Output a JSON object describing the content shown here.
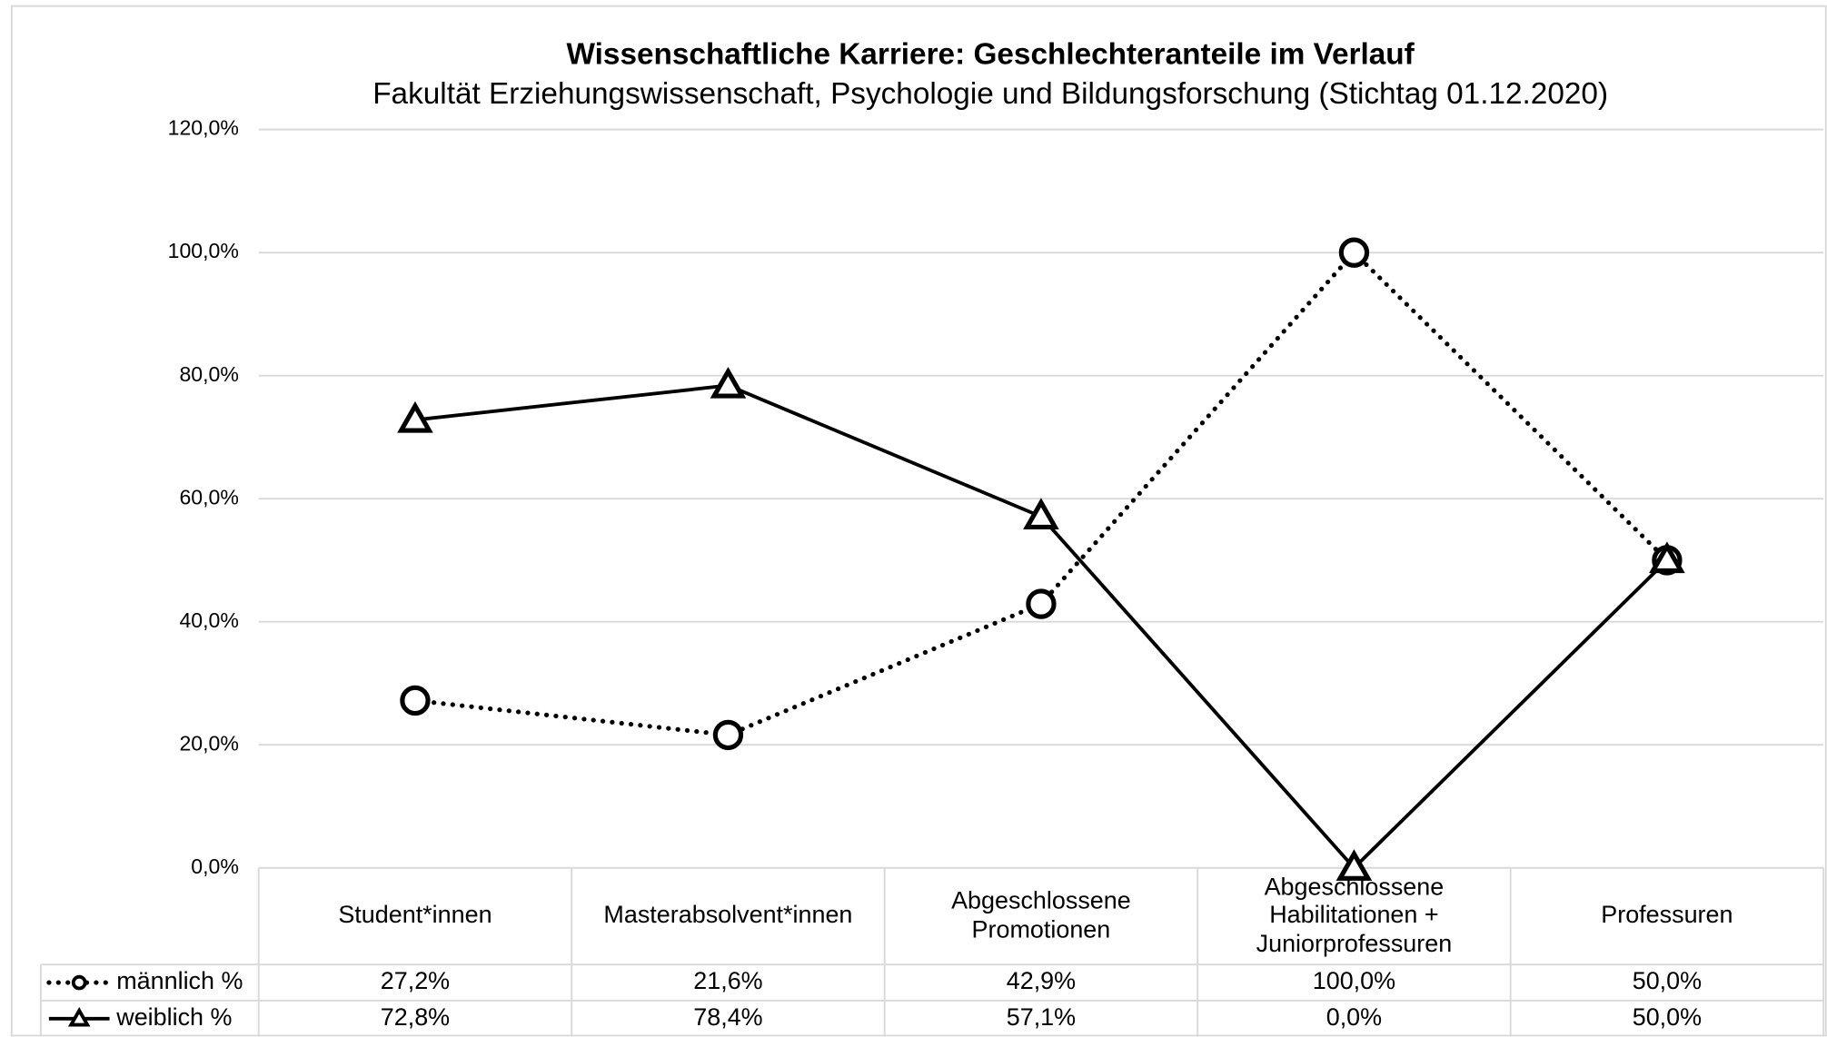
{
  "chart_data": {
    "type": "line",
    "title": "Wissenschaftliche Karriere: Geschlechteranteile im Verlauf",
    "subtitle": "Fakultät Erziehungswissenschaft, Psychologie und Bildungsforschung (Stichtag 01.12.2020)",
    "categories": [
      "Student*innen",
      "Masterabsolvent*innen",
      "Abgeschlossene\nPromotionen",
      "Abgeschlossene\nHabilitationen +\nJuniorprofessuren",
      "Professuren"
    ],
    "series": [
      {
        "name": "männlich %",
        "color": "#000000",
        "values": [
          27.2,
          21.6,
          42.9,
          100.0,
          50.0
        ],
        "value_labels": [
          "27,2%",
          "21,6%",
          "42,9%",
          "100,0%",
          "50,0%"
        ]
      },
      {
        "name": "weiblich %",
        "color": "#000000",
        "values": [
          72.8,
          78.4,
          57.1,
          0.0,
          50.0
        ],
        "value_labels": [
          "72,8%",
          "78,4%",
          "57,1%",
          "0,0%",
          "50,0%"
        ]
      }
    ],
    "ylim": [
      0,
      120
    ],
    "yticks": [
      {
        "value": 0,
        "label": "0,0%"
      },
      {
        "value": 20,
        "label": "20,0%"
      },
      {
        "value": 40,
        "label": "40,0%"
      },
      {
        "value": 60,
        "label": "60,0%"
      },
      {
        "value": 80,
        "label": "80,0%"
      },
      {
        "value": 100,
        "label": "100,0%"
      },
      {
        "value": 120,
        "label": "120,0%"
      }
    ],
    "grid": true
  }
}
